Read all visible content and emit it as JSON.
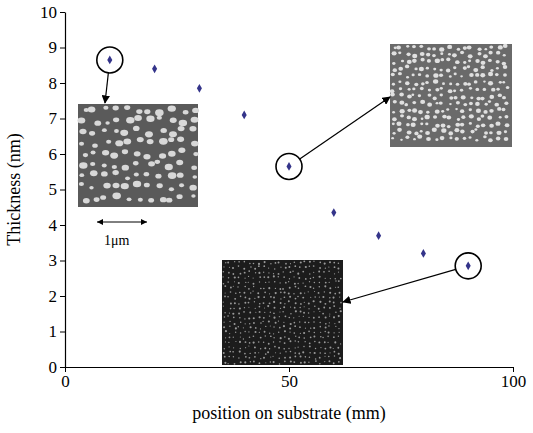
{
  "chart_data": {
    "type": "scatter",
    "x_label": "position on substrate (mm)",
    "y_label": "Thickness (nm)",
    "x": [
      10,
      20,
      30,
      40,
      50,
      60,
      70,
      80,
      90
    ],
    "values": [
      8.65,
      8.4,
      7.85,
      7.1,
      5.65,
      4.35,
      3.7,
      3.2,
      2.85
    ],
    "color": "#34348a",
    "marker": "diamond",
    "xlim": [
      0,
      100
    ],
    "xticks": [
      0,
      50,
      100
    ],
    "ylim": [
      0,
      10
    ],
    "yticks": [
      0,
      1,
      2,
      3,
      4,
      5,
      6,
      7,
      8,
      9,
      10
    ],
    "grid": false,
    "annotations": [
      "1μm"
    ]
  }
}
